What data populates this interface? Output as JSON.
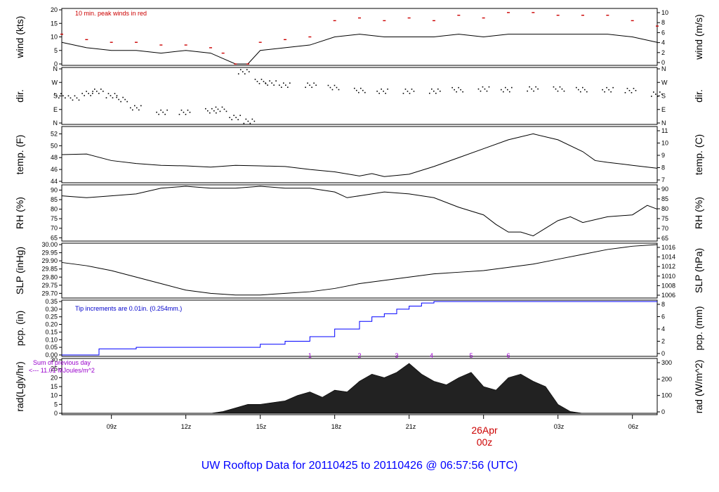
{
  "footer": {
    "title": "UW Rooftop Data for 20110425  to  20110426 @ 06:57:56  (UTC)",
    "title_color": "#0000ff"
  },
  "x_axis": {
    "tick_labels": [
      "09z",
      "12z",
      "15z",
      "18z",
      "21z",
      "03z",
      "06z"
    ],
    "date_label": "26Apr",
    "date_sublabel": "00z",
    "date_color": "#cc0000"
  },
  "chart_data": [
    {
      "type": "line",
      "id": "wind",
      "ylabel": "wind (kts)",
      "ylabel_right": "wind (m/s)",
      "ylim": [
        0,
        20
      ],
      "y_ticks": [
        "0",
        "5",
        "10",
        "15",
        "20"
      ],
      "right_ticks": [
        "0",
        "2",
        "4",
        "6",
        "8",
        "10"
      ],
      "annotation": "10 min. peak winds in red",
      "annotation_color": "#cc0000",
      "x": [
        7,
        8,
        9,
        10,
        11,
        12,
        13,
        13.5,
        14,
        14.5,
        15,
        16,
        17,
        18,
        19,
        20,
        21,
        22,
        23,
        24,
        25,
        26,
        27,
        28,
        29,
        30,
        31
      ],
      "series": [
        {
          "values": [
            8,
            6,
            5,
            5,
            4,
            5,
            4,
            2,
            0,
            0,
            5,
            6,
            7,
            10,
            11,
            10,
            10,
            10,
            11,
            10,
            11,
            11,
            11,
            11,
            11,
            10,
            8
          ],
          "color": "#000000"
        },
        {
          "values": [
            11,
            9,
            8,
            8,
            7,
            7,
            6,
            4,
            0,
            0,
            8,
            9,
            10,
            16,
            17,
            16,
            17,
            16,
            18,
            17,
            19,
            19,
            18,
            18,
            18,
            16,
            14
          ],
          "color": "#cc0000",
          "style": "dashes"
        }
      ]
    },
    {
      "type": "scatter",
      "id": "dir",
      "ylabel": "dir.",
      "ylabel_right": "dir.",
      "y_ticks": [
        "N",
        "E",
        "S",
        "W",
        "N"
      ],
      "right_ticks": [
        "N",
        "E",
        "S",
        "W",
        "N"
      ],
      "x": [
        7,
        7.5,
        8,
        8.5,
        9,
        9.5,
        10,
        11,
        12,
        13,
        13.5,
        14,
        14.3,
        14.6,
        15,
        15.5,
        16,
        17,
        18,
        19,
        20,
        21,
        22,
        23,
        24,
        25,
        26,
        27,
        28,
        29,
        30,
        31
      ],
      "values": [
        180,
        175,
        200,
        210,
        190,
        160,
        100,
        80,
        75,
        80,
        100,
        40,
        340,
        20,
        280,
        265,
        260,
        255,
        235,
        225,
        215,
        210,
        220,
        225,
        225,
        230,
        230,
        225,
        230,
        225,
        215,
        200
      ],
      "color": "#000000"
    },
    {
      "type": "line",
      "id": "temp",
      "ylabel": "temp. (F)",
      "ylabel_right": "temp. (C)",
      "ylim": [
        44,
        53
      ],
      "y_ticks": [
        "44",
        "46",
        "48",
        "50",
        "52"
      ],
      "right_ticks": [
        "7",
        "8",
        "9",
        "10",
        "11"
      ],
      "x": [
        7,
        8,
        9,
        10,
        11,
        12,
        13,
        14,
        15,
        16,
        17,
        18,
        19,
        19.5,
        20,
        21,
        22,
        23,
        24,
        25,
        26,
        27,
        28,
        28.5,
        29,
        30,
        31
      ],
      "values": [
        48.5,
        48.6,
        47.5,
        47,
        46.7,
        46.6,
        46.4,
        46.7,
        46.6,
        46.5,
        46,
        45.6,
        44.9,
        45.3,
        44.8,
        45.2,
        46.5,
        48,
        49.5,
        51,
        52,
        51,
        49,
        47.5,
        47.2,
        46.7,
        46.2
      ],
      "color": "#000000"
    },
    {
      "type": "line",
      "id": "rh",
      "ylabel": "RH (%)",
      "ylabel_right": "RH (%)",
      "ylim": [
        64,
        92
      ],
      "y_ticks": [
        "65",
        "70",
        "75",
        "80",
        "85",
        "90"
      ],
      "right_ticks": [
        "65",
        "70",
        "75",
        "80",
        "85",
        "90"
      ],
      "x": [
        7,
        8,
        9,
        10,
        11,
        12,
        13,
        14,
        15,
        16,
        17,
        18,
        18.5,
        19,
        20,
        21,
        22,
        23,
        24,
        24.5,
        25,
        25.5,
        26,
        26.5,
        27,
        27.5,
        28,
        29,
        30,
        30.6,
        31
      ],
      "values": [
        87,
        86,
        87,
        88,
        91,
        92,
        91,
        91,
        92,
        91,
        91,
        89,
        86,
        87,
        89,
        88,
        86,
        81,
        77,
        72,
        68,
        68,
        66,
        70,
        74,
        76,
        73,
        76,
        77,
        82,
        80
      ],
      "color": "#000000"
    },
    {
      "type": "line",
      "id": "slp",
      "ylabel": "SLP (inHg)",
      "ylabel_right": "SLP (hPa)",
      "ylim": [
        29.68,
        30.0
      ],
      "y_ticks": [
        "29.70",
        "29.75",
        "29.80",
        "29.85",
        "29.90",
        "29.95",
        "30.00"
      ],
      "right_ticks": [
        "1006",
        "1008",
        "1010",
        "1012",
        "1014",
        "1016"
      ],
      "x": [
        7,
        8,
        9,
        10,
        11,
        12,
        13,
        14,
        15,
        16,
        17,
        18,
        19,
        20,
        21,
        22,
        23,
        24,
        25,
        26,
        27,
        28,
        29,
        30,
        31
      ],
      "values": [
        29.89,
        29.87,
        29.84,
        29.8,
        29.76,
        29.72,
        29.7,
        29.69,
        29.69,
        29.7,
        29.71,
        29.73,
        29.76,
        29.78,
        29.8,
        29.82,
        29.83,
        29.84,
        29.86,
        29.88,
        29.91,
        29.94,
        29.97,
        29.99,
        30.0
      ],
      "color": "#000000"
    },
    {
      "type": "line",
      "id": "pcp",
      "ylabel": "pcp. (in)",
      "ylabel_right": "pcp. (mm)",
      "ylim": [
        0,
        0.35
      ],
      "y_ticks": [
        "0.00",
        "0.05",
        "0.10",
        "0.15",
        "0.20",
        "0.25",
        "0.30",
        "0.35"
      ],
      "right_ticks": [
        "0",
        "2",
        "4",
        "6",
        "8"
      ],
      "annotation": "Tip increments are 0.01in. (0.254mm.)",
      "annotation_color": "#0000cc",
      "x": [
        7,
        8,
        8.5,
        9,
        10,
        14,
        15,
        16,
        17,
        18,
        19,
        19.5,
        20,
        20.5,
        21,
        21.5,
        22,
        31
      ],
      "values": [
        0,
        0,
        0.04,
        0.04,
        0.05,
        0.05,
        0.07,
        0.09,
        0.12,
        0.17,
        0.22,
        0.25,
        0.27,
        0.3,
        0.32,
        0.34,
        0.35,
        0.35
      ],
      "color": "#0000ff",
      "style": "step"
    },
    {
      "type": "area",
      "id": "rad",
      "ylabel": "rad(Lgly/hr)",
      "ylabel_right": "rad (W/m^2)",
      "ylim": [
        0,
        30
      ],
      "y_ticks": [
        "0",
        "5",
        "10",
        "15",
        "20",
        "25",
        "30"
      ],
      "right_ticks": [
        "0",
        "100",
        "200",
        "300"
      ],
      "annotation": "Sum of previous day",
      "annotation2": "<--- 11.01 MJoules/m^2",
      "annotation_color": "#9900cc",
      "markers": [
        "1",
        "2",
        "3",
        "4",
        "5",
        "6"
      ],
      "marker_x": [
        17,
        19,
        20.5,
        21.9,
        23.5,
        25
      ],
      "x": [
        13,
        13.5,
        14,
        14.5,
        15,
        15.5,
        16,
        16.5,
        17,
        17.5,
        18,
        18.5,
        19,
        19.5,
        20,
        20.5,
        21,
        21.5,
        22,
        22.5,
        23,
        23.5,
        24,
        24.5,
        25,
        25.5,
        26,
        26.5,
        27,
        27.5,
        28
      ],
      "values": [
        0,
        1,
        3,
        5,
        5,
        6,
        7,
        10,
        12,
        9,
        13,
        12,
        18,
        22,
        20,
        23,
        28,
        22,
        18,
        16,
        20,
        23,
        15,
        13,
        20,
        22,
        18,
        15,
        5,
        1,
        0
      ],
      "color": "#222222"
    }
  ]
}
